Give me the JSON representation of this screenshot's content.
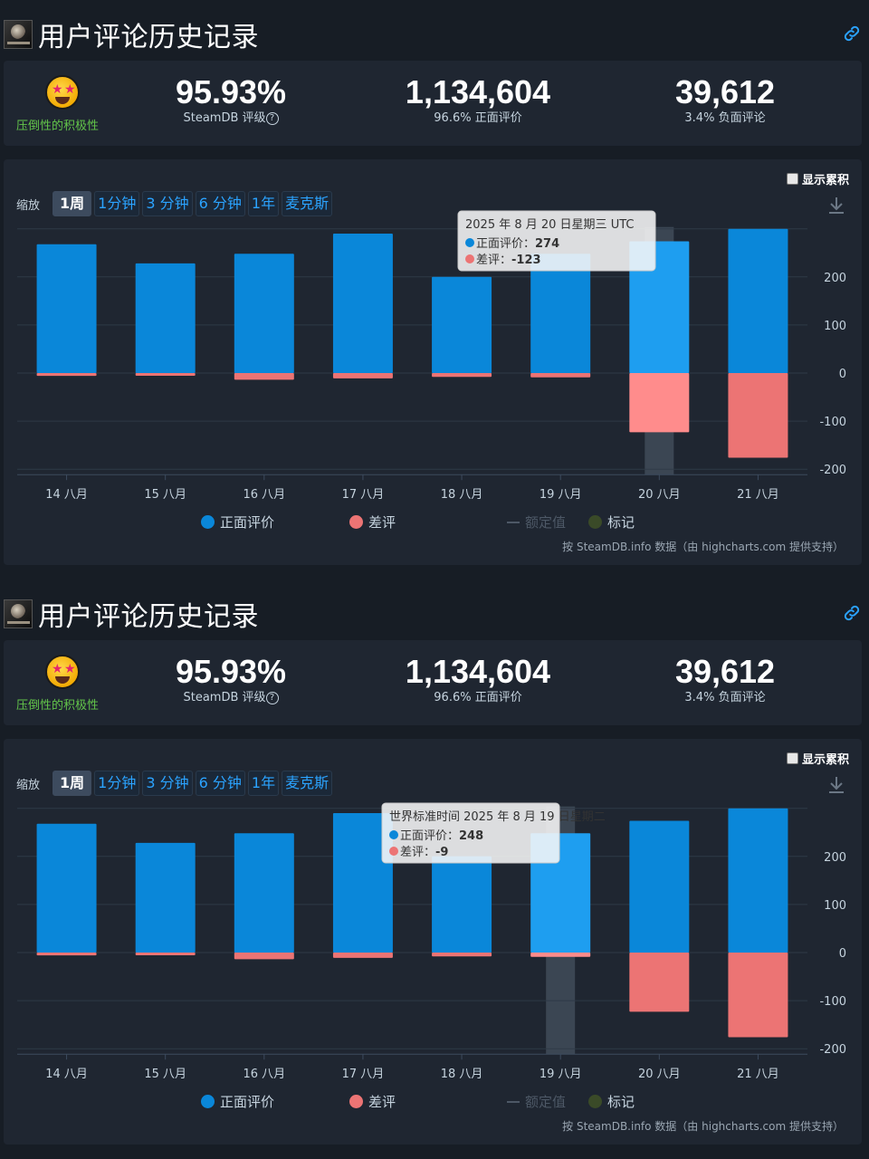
{
  "page": {
    "section_title": "用户评论历史记录",
    "game_icon": "game-icon",
    "link_icon": "link-icon"
  },
  "stats": {
    "rating_label": "压倒性的积极性",
    "score": "95.93%",
    "score_label": "SteamDB 评级",
    "score_help": "?",
    "positive_count": "1,134,604",
    "positive_label": "96.6% 正面评价",
    "negative_count": "39,612",
    "negative_label": "3.4% 负面评论"
  },
  "controls": {
    "cumulative_label": "显示累积",
    "zoom_label": "缩放",
    "zoom_buttons": [
      "1周",
      "1分钟",
      "3 分钟",
      "6 分钟",
      "1年",
      "麦克斯"
    ],
    "active_zoom": "1周",
    "download_icon": "download-icon"
  },
  "legend": {
    "positive": "正面评价",
    "negative": "差评",
    "threshold": "额定值",
    "markers": "标记"
  },
  "credits": "按 SteamDB.info 数据（由 highcharts.com 提供支持）",
  "colors": {
    "positive": "#0a87d9",
    "positive_hover": "#1e9ef0",
    "negative": "#ec7474",
    "negative_hover": "#ff8c8c",
    "markers": "#3a4a28"
  },
  "chart_data": [
    {
      "type": "bar",
      "title": "用户评论历史记录",
      "categories": [
        "14 八月",
        "15 八月",
        "16 八月",
        "17 八月",
        "18 八月",
        "19 八月",
        "20 八月",
        "21 八月"
      ],
      "series": [
        {
          "name": "正面评价",
          "values": [
            268,
            228,
            248,
            290,
            200,
            248,
            274,
            300
          ]
        },
        {
          "name": "差评",
          "values": [
            -6,
            -2,
            -14,
            -11,
            -8,
            -9,
            -123,
            -176
          ]
        }
      ],
      "ylim": [
        -200,
        300
      ],
      "yticks": [
        -200,
        -100,
        0,
        100,
        200
      ],
      "highlight_index": 6,
      "tooltip": {
        "header": "2025 年 8 月 20 日星期三 UTC",
        "positive_label": "正面评价",
        "positive_value": "274",
        "negative_label": "差评",
        "negative_value": "-123"
      }
    },
    {
      "type": "bar",
      "title": "用户评论历史记录",
      "categories": [
        "14 八月",
        "15 八月",
        "16 八月",
        "17 八月",
        "18 八月",
        "19 八月",
        "20 八月",
        "21 八月"
      ],
      "series": [
        {
          "name": "正面评价",
          "values": [
            268,
            228,
            248,
            290,
            200,
            248,
            274,
            300
          ]
        },
        {
          "name": "差评",
          "values": [
            -6,
            -2,
            -14,
            -11,
            -8,
            -9,
            -123,
            -176
          ]
        }
      ],
      "ylim": [
        -200,
        300
      ],
      "yticks": [
        -200,
        -100,
        0,
        100,
        200
      ],
      "highlight_index": 5,
      "tooltip": {
        "header": "世界标准时间 2025 年 8 月 19 日星期二",
        "positive_label": "正面评价",
        "positive_value": "248",
        "negative_label": "差评",
        "negative_value": "-9"
      }
    }
  ]
}
